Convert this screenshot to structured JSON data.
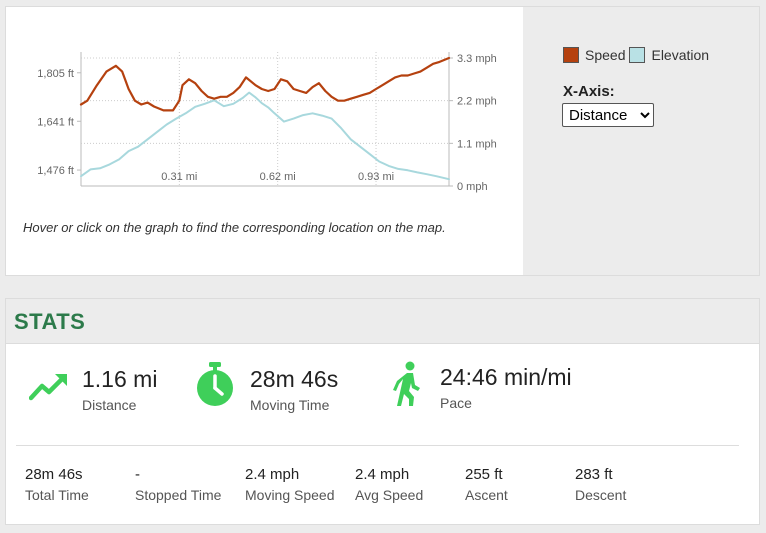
{
  "chart": {
    "legend": {
      "speed_label": "Speed",
      "elevation_label": "Elevation"
    },
    "xaxis": {
      "label": "X-Axis:",
      "selected": "Distance",
      "options": [
        "Distance"
      ]
    },
    "hint": "Hover or click on the graph to find the corresponding location on the map.",
    "colors": {
      "speed": "#b5410f",
      "elevation": "#a8d8dd",
      "speed_swatch": "#b5410f",
      "elevation_swatch": "#b9e1e5"
    }
  },
  "chart_data": {
    "type": "line",
    "title": "",
    "xlabel": "",
    "x_unit": "mi",
    "xlim": [
      0,
      1.16
    ],
    "x_ticks": [
      "0.31 mi",
      "0.62 mi",
      "0.93 mi"
    ],
    "x_tick_values": [
      0.31,
      0.62,
      0.93
    ],
    "y_left": {
      "ticks": [
        "1,805 ft",
        "1,641 ft",
        "1,476 ft"
      ],
      "tick_values": [
        1805,
        1641,
        1476
      ]
    },
    "y_right": {
      "ticks": [
        "3.3 mph",
        "2.2 mph",
        "1.1 mph",
        "0 mph"
      ],
      "tick_values": [
        3.3,
        2.2,
        1.1,
        0
      ],
      "ylim": [
        0,
        3.3
      ]
    },
    "grid": true,
    "series": [
      {
        "name": "Speed",
        "axis": "right",
        "x": [
          0,
          0.02,
          0.05,
          0.08,
          0.11,
          0.13,
          0.15,
          0.17,
          0.19,
          0.21,
          0.23,
          0.26,
          0.29,
          0.31,
          0.32,
          0.34,
          0.36,
          0.38,
          0.4,
          0.42,
          0.44,
          0.46,
          0.48,
          0.5,
          0.52,
          0.55,
          0.57,
          0.59,
          0.61,
          0.63,
          0.65,
          0.67,
          0.69,
          0.71,
          0.73,
          0.75,
          0.77,
          0.79,
          0.81,
          0.83,
          0.85,
          0.87,
          0.89,
          0.91,
          0.93,
          0.95,
          0.97,
          0.99,
          1.01,
          1.03,
          1.05,
          1.07,
          1.09,
          1.11,
          1.13,
          1.16
        ],
        "values": [
          2.1,
          2.2,
          2.6,
          2.95,
          3.1,
          2.95,
          2.5,
          2.2,
          2.1,
          2.15,
          2.05,
          1.95,
          1.95,
          2.2,
          2.6,
          2.75,
          2.65,
          2.45,
          2.3,
          2.25,
          2.3,
          2.3,
          2.4,
          2.55,
          2.8,
          2.6,
          2.5,
          2.45,
          2.5,
          2.75,
          2.7,
          2.5,
          2.45,
          2.4,
          2.55,
          2.65,
          2.45,
          2.3,
          2.2,
          2.2,
          2.25,
          2.3,
          2.35,
          2.4,
          2.5,
          2.6,
          2.7,
          2.8,
          2.85,
          2.85,
          2.9,
          2.95,
          3.05,
          3.15,
          3.2,
          3.3
        ]
      },
      {
        "name": "Elevation",
        "axis": "left",
        "x": [
          0,
          0.03,
          0.06,
          0.09,
          0.12,
          0.15,
          0.18,
          0.21,
          0.24,
          0.27,
          0.3,
          0.33,
          0.36,
          0.39,
          0.42,
          0.45,
          0.48,
          0.51,
          0.53,
          0.55,
          0.57,
          0.59,
          0.61,
          0.64,
          0.67,
          0.7,
          0.73,
          0.76,
          0.79,
          0.82,
          0.85,
          0.88,
          0.91,
          0.94,
          0.97,
          1.0,
          1.03,
          1.06,
          1.09,
          1.12,
          1.16
        ],
        "values": [
          1455,
          1478,
          1482,
          1495,
          1512,
          1540,
          1555,
          1580,
          1605,
          1630,
          1650,
          1668,
          1690,
          1700,
          1712,
          1692,
          1700,
          1720,
          1738,
          1722,
          1702,
          1688,
          1668,
          1640,
          1650,
          1662,
          1668,
          1660,
          1650,
          1618,
          1580,
          1555,
          1530,
          1505,
          1490,
          1480,
          1475,
          1468,
          1462,
          1455,
          1445
        ]
      }
    ]
  },
  "stats": {
    "title": "STATS",
    "main": [
      {
        "value": "1.16 mi",
        "label": "Distance",
        "icon": "trend-up-icon"
      },
      {
        "value": "28m 46s",
        "label": "Moving Time",
        "icon": "stopwatch-icon"
      },
      {
        "value": "24:46 min/mi",
        "label": "Pace",
        "icon": "walker-icon"
      }
    ],
    "details": [
      {
        "value": "28m 46s",
        "label": "Total Time"
      },
      {
        "value": "-",
        "label": "Stopped Time"
      },
      {
        "value": "2.4 mph",
        "label": "Moving Speed"
      },
      {
        "value": "2.4 mph",
        "label": "Avg Speed"
      },
      {
        "value": "255 ft",
        "label": "Ascent"
      },
      {
        "value": "283 ft",
        "label": "Descent"
      }
    ],
    "icon_color": "#3fcf5a"
  }
}
